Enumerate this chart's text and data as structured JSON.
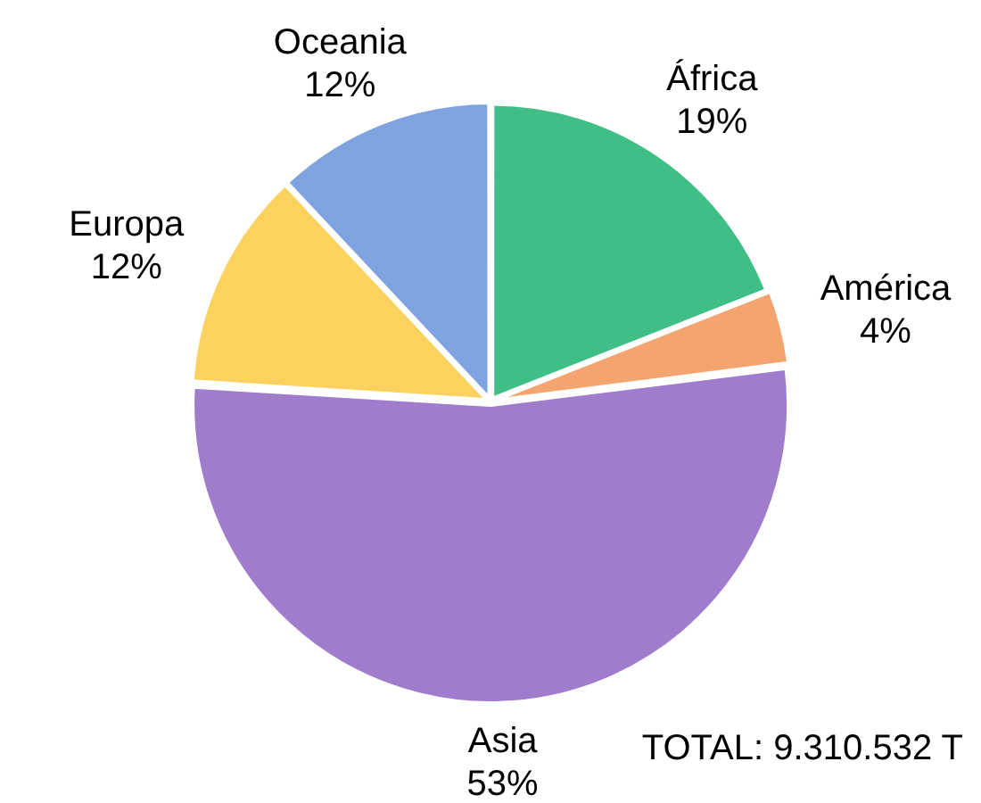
{
  "chart_data": {
    "type": "pie",
    "categories": [
      "África",
      "América",
      "Asia",
      "Europa",
      "Oceania"
    ],
    "values": [
      19,
      4,
      53,
      12,
      12
    ],
    "value_labels": [
      "19%",
      "4%",
      "53%",
      "12%",
      "12%"
    ],
    "colors": [
      "#3fbf86",
      "#f4a46e",
      "#a07ccc",
      "#fcd25e",
      "#7fa3e0"
    ],
    "legend": false,
    "annotations": [
      "TOTAL: 9.310.532 T"
    ]
  }
}
